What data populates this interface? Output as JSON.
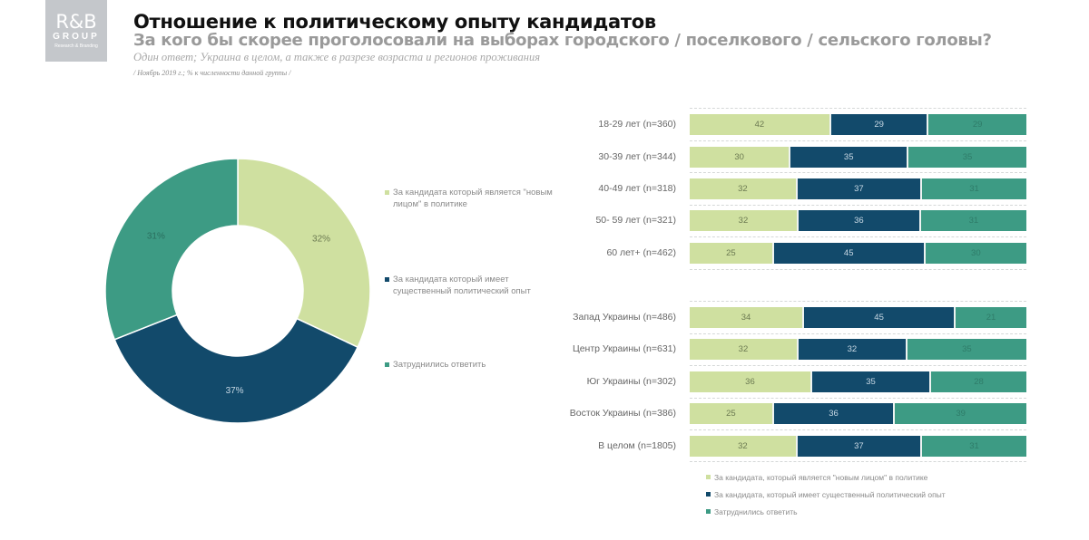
{
  "logo": {
    "line1": "R&B",
    "line2": "GROUP",
    "line3": "Research & Branding"
  },
  "header": {
    "title": "Отношение к политическому опыту кандидатов",
    "subtitle": "За кого бы скорее проголосовали на выборах городского / поселкового / сельского головы?",
    "note": "Один ответ; Украина в целом, а также в разрезе возраста и регионов проживания",
    "base_note": "/ Ноябрь 2019 г.; % к численности данной группы /"
  },
  "colors": {
    "new_face": "#cfe0a0",
    "experienced": "#124a6b",
    "hard_to_say": "#3d9b84"
  },
  "donut_legend": [
    "За кандидата который является \"новым лицом\" в политике",
    "За кандидата который имеет существенный политический опыт",
    "Затруднились ответить"
  ],
  "bar_legend": [
    "За кандидата, который является \"новым лицом\" в политике",
    "За кандидата, который имеет существенный политический опыт",
    "Затруднились ответить"
  ],
  "chart_data": [
    {
      "type": "pie",
      "subtype": "donut",
      "title": "В целом",
      "categories": [
        "За кандидата который является \"новым лицом\" в политике",
        "За кандидата который имеет существенный политический опыт",
        "Затруднились ответить"
      ],
      "values": [
        32,
        37,
        31
      ],
      "labels": [
        "32%",
        "37%",
        "31%"
      ],
      "legend_position": "right"
    },
    {
      "type": "bar",
      "subtype": "stacked-horizontal-100",
      "categories": [
        "18-29 лет (n=360)",
        "30-39 лет (n=344)",
        "40-49 лет (n=318)",
        "50- 59 лет (n=321)",
        "60 лет+ (n=462)",
        "Запад Украины (n=486)",
        "Центр Украины (n=631)",
        "Юг Украины (n=302)",
        "Восток Украины (n=386)",
        "В целом (n=1805)"
      ],
      "series": [
        {
          "name": "За кандидата, который является \"новым лицом\" в политике",
          "values": [
            42,
            30,
            32,
            32,
            25,
            34,
            32,
            36,
            25,
            32
          ]
        },
        {
          "name": "За кандидата, который имеет существенный политический опыт",
          "values": [
            29,
            35,
            37,
            36,
            45,
            45,
            32,
            35,
            36,
            37
          ]
        },
        {
          "name": "Затруднились ответить",
          "values": [
            29,
            35,
            31,
            31,
            30,
            21,
            35,
            28,
            39,
            31
          ]
        }
      ],
      "xlim": [
        0,
        100
      ],
      "grid": false,
      "legend_position": "bottom"
    }
  ]
}
